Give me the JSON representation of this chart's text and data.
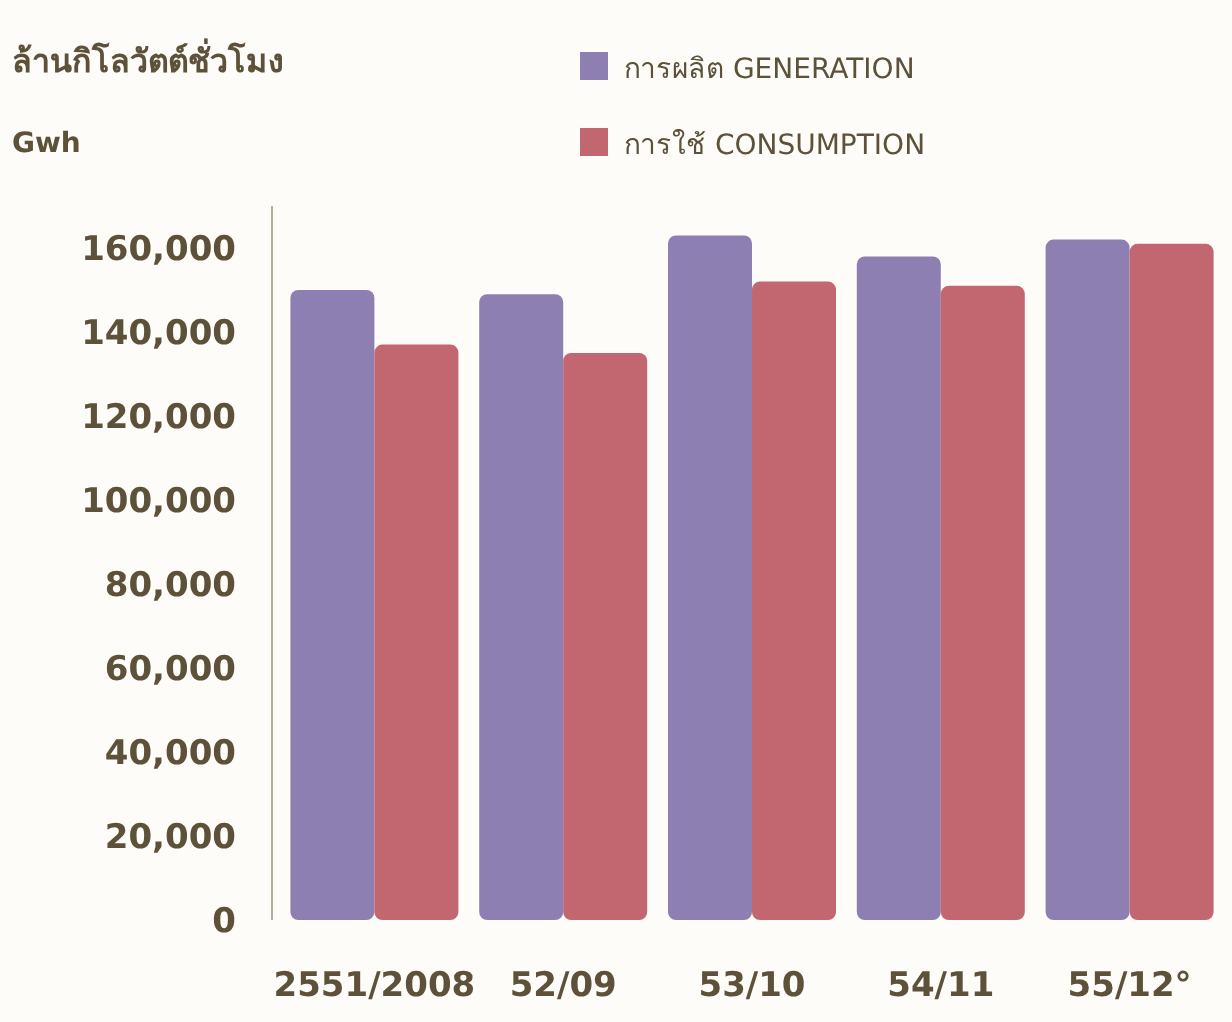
{
  "chart_data": {
    "type": "bar",
    "title": "ล้านกิโลวัตต์ชั่วโมง",
    "subtitle": "Gwh",
    "categories": [
      "2551/2008",
      "52/09",
      "53/10",
      "54/11",
      "55/12°"
    ],
    "series": [
      {
        "name": "การผลิต GENERATION",
        "color": "#8e7fb3",
        "values": [
          150000,
          149000,
          163000,
          158000,
          162000
        ]
      },
      {
        "name": "การใช้ CONSUMPTION",
        "color": "#c2666f",
        "values": [
          137000,
          135000,
          152000,
          151000,
          161000
        ]
      }
    ],
    "ylim": [
      0,
      170000
    ],
    "yticks": [
      {
        "value": 0,
        "label": "0"
      },
      {
        "value": 20000,
        "label": "20,000"
      },
      {
        "value": 40000,
        "label": "40,000"
      },
      {
        "value": 60000,
        "label": "60,000"
      },
      {
        "value": 80000,
        "label": "80,000"
      },
      {
        "value": 100000,
        "label": "100,000"
      },
      {
        "value": 120000,
        "label": "120,000"
      },
      {
        "value": 140000,
        "label": "140,000"
      },
      {
        "value": 160000,
        "label": "160,000"
      }
    ],
    "grid": false,
    "legend": "top right"
  }
}
